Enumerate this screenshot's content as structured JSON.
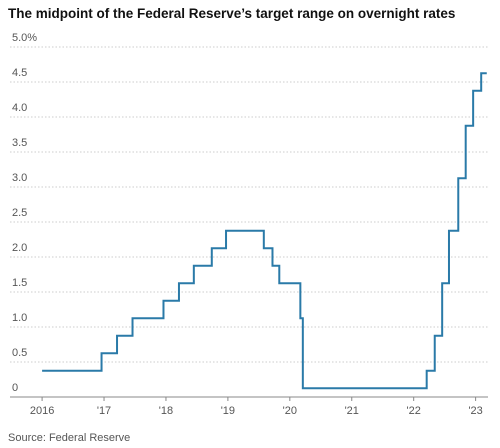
{
  "chart_data": {
    "type": "line",
    "title": "The midpoint of the Federal Reserve’s target range on overnight rates",
    "source": "Source: Federal Reserve",
    "xlim": [
      2015.95,
      2023.2
    ],
    "xticks": [
      2016,
      {
        "value": 2017,
        "label": "'17"
      },
      {
        "value": 2018,
        "label": "'18"
      },
      {
        "value": 2019,
        "label": "'19"
      },
      {
        "value": 2020,
        "label": "'20"
      },
      {
        "value": 2021,
        "label": "'21"
      },
      {
        "value": 2022,
        "label": "'22"
      },
      {
        "value": 2023,
        "label": "'23"
      }
    ],
    "ylim": [
      0,
      5
    ],
    "yticks": [
      0,
      0.5,
      {
        "value": 1,
        "label": "1.0"
      },
      1.5,
      {
        "value": 2,
        "label": "2.0"
      },
      2.5,
      {
        "value": 3,
        "label": "3.0"
      },
      3.5,
      {
        "value": 4,
        "label": "4.0"
      },
      4.5,
      {
        "value": 5,
        "label": "5.0%"
      }
    ],
    "grid": true,
    "series": [
      {
        "color": "#2a7aa8",
        "x": [
          2016.0,
          2016.96,
          2016.96,
          2017.21,
          2017.21,
          2017.46,
          2017.46,
          2017.96,
          2017.96,
          2018.21,
          2018.21,
          2018.45,
          2018.45,
          2018.74,
          2018.74,
          2018.97,
          2018.97,
          2019.58,
          2019.58,
          2019.72,
          2019.72,
          2019.83,
          2019.83,
          2020.17,
          2020.17,
          2020.21,
          2020.21,
          2022.21,
          2022.21,
          2022.34,
          2022.34,
          2022.46,
          2022.46,
          2022.57,
          2022.57,
          2022.72,
          2022.72,
          2022.84,
          2022.84,
          2022.96,
          2022.96,
          2023.09,
          2023.09,
          2023.18
        ],
        "values": [
          0.375,
          0.375,
          0.625,
          0.625,
          0.875,
          0.875,
          1.125,
          1.125,
          1.375,
          1.375,
          1.625,
          1.625,
          1.875,
          1.875,
          2.125,
          2.125,
          2.375,
          2.375,
          2.125,
          2.125,
          1.875,
          1.875,
          1.625,
          1.625,
          1.125,
          1.125,
          0.125,
          0.125,
          0.375,
          0.375,
          0.875,
          0.875,
          1.625,
          1.625,
          2.375,
          2.375,
          3.125,
          3.125,
          3.875,
          3.875,
          4.375,
          4.375,
          4.625,
          4.625
        ]
      }
    ]
  }
}
